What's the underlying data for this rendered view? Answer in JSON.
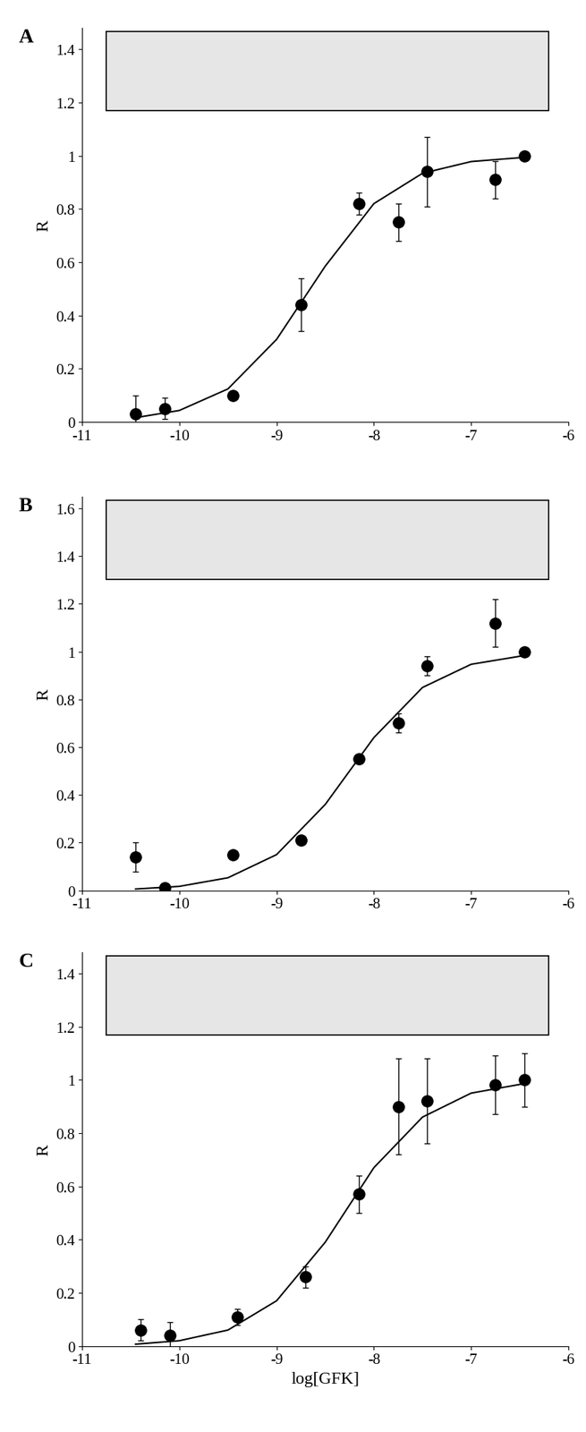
{
  "chart_data": [
    {
      "type": "scatter",
      "title": "A",
      "y_label": "R",
      "xlim": [
        -11,
        -6
      ],
      "xticks": [
        -11,
        -10,
        -9,
        -8,
        -7,
        -6
      ],
      "ylim": [
        0,
        1.48
      ],
      "yticks": [
        0,
        0.2,
        0.4,
        0.6,
        0.8,
        1,
        1.2,
        1.4
      ],
      "series": [
        {
          "type": "scatter",
          "color": "#000000",
          "marker": "o",
          "x": [
            -10.45,
            -10.15,
            -9.45,
            -8.75,
            -8.15,
            -7.75,
            -7.45,
            -6.75,
            -6.45
          ],
          "values": [
            0.03,
            0.05,
            0.1,
            0.44,
            0.82,
            0.75,
            0.94,
            0.91,
            1.0
          ],
          "errors": [
            0.07,
            0.04,
            0,
            0.1,
            0.04,
            0.07,
            0.13,
            0.07,
            0
          ]
        },
        {
          "type": "line",
          "color": "#000000",
          "x": [
            -10.45,
            -10.0,
            -9.5,
            -9.0,
            -8.5,
            -8.0,
            -7.5,
            -7.0,
            -6.45
          ],
          "values": [
            0.016,
            0.043,
            0.124,
            0.31,
            0.585,
            0.82,
            0.934,
            0.978,
            0.994
          ]
        }
      ]
    },
    {
      "type": "scatter",
      "title": "B",
      "y_label": "R",
      "xlim": [
        -11,
        -6
      ],
      "xticks": [
        -11,
        -10,
        -9,
        -8,
        -7,
        -6
      ],
      "ylim": [
        0,
        1.65
      ],
      "yticks": [
        0,
        0.2,
        0.4,
        0.6,
        0.8,
        1,
        1.2,
        1.4,
        1.6
      ],
      "series": [
        {
          "type": "scatter",
          "color": "#000000",
          "marker": "o",
          "x": [
            -10.45,
            -10.15,
            -9.45,
            -8.75,
            -8.15,
            -7.75,
            -7.45,
            -6.75,
            -6.45
          ],
          "values": [
            0.14,
            0.01,
            0.15,
            0.21,
            0.55,
            0.7,
            0.94,
            1.12,
            1.0
          ],
          "errors": [
            0.06,
            0,
            0,
            0,
            0,
            0.04,
            0.04,
            0.1,
            0
          ]
        },
        {
          "type": "line",
          "color": "#000000",
          "x": [
            -10.45,
            -10.0,
            -9.5,
            -9.0,
            -8.5,
            -8.0,
            -7.5,
            -7.0,
            -6.45
          ],
          "values": [
            0.006,
            0.017,
            0.053,
            0.15,
            0.36,
            0.64,
            0.85,
            0.947,
            0.984
          ]
        }
      ]
    },
    {
      "type": "scatter",
      "title": "C",
      "y_label": "R",
      "x_label": "log[GFK]",
      "xlim": [
        -11,
        -6
      ],
      "xticks": [
        -11,
        -10,
        -9,
        -8,
        -7,
        -6
      ],
      "ylim": [
        0,
        1.48
      ],
      "yticks": [
        0,
        0.2,
        0.4,
        0.6,
        0.8,
        1,
        1.2,
        1.4
      ],
      "series": [
        {
          "type": "scatter",
          "color": "#000000",
          "marker": "o",
          "x": [
            -10.4,
            -10.1,
            -9.4,
            -8.7,
            -8.15,
            -7.75,
            -7.45,
            -6.75,
            -6.45
          ],
          "values": [
            0.06,
            0.04,
            0.11,
            0.26,
            0.57,
            0.9,
            0.92,
            0.98,
            1.0
          ],
          "errors": [
            0.04,
            0.05,
            0.03,
            0.04,
            0.07,
            0.18,
            0.16,
            0.11,
            0.1
          ]
        },
        {
          "type": "line",
          "color": "#000000",
          "x": [
            -10.45,
            -10.0,
            -9.5,
            -9.0,
            -8.5,
            -8.0,
            -7.5,
            -7.0,
            -6.45
          ],
          "values": [
            0.007,
            0.02,
            0.06,
            0.17,
            0.39,
            0.67,
            0.86,
            0.95,
            0.986
          ]
        }
      ]
    }
  ]
}
